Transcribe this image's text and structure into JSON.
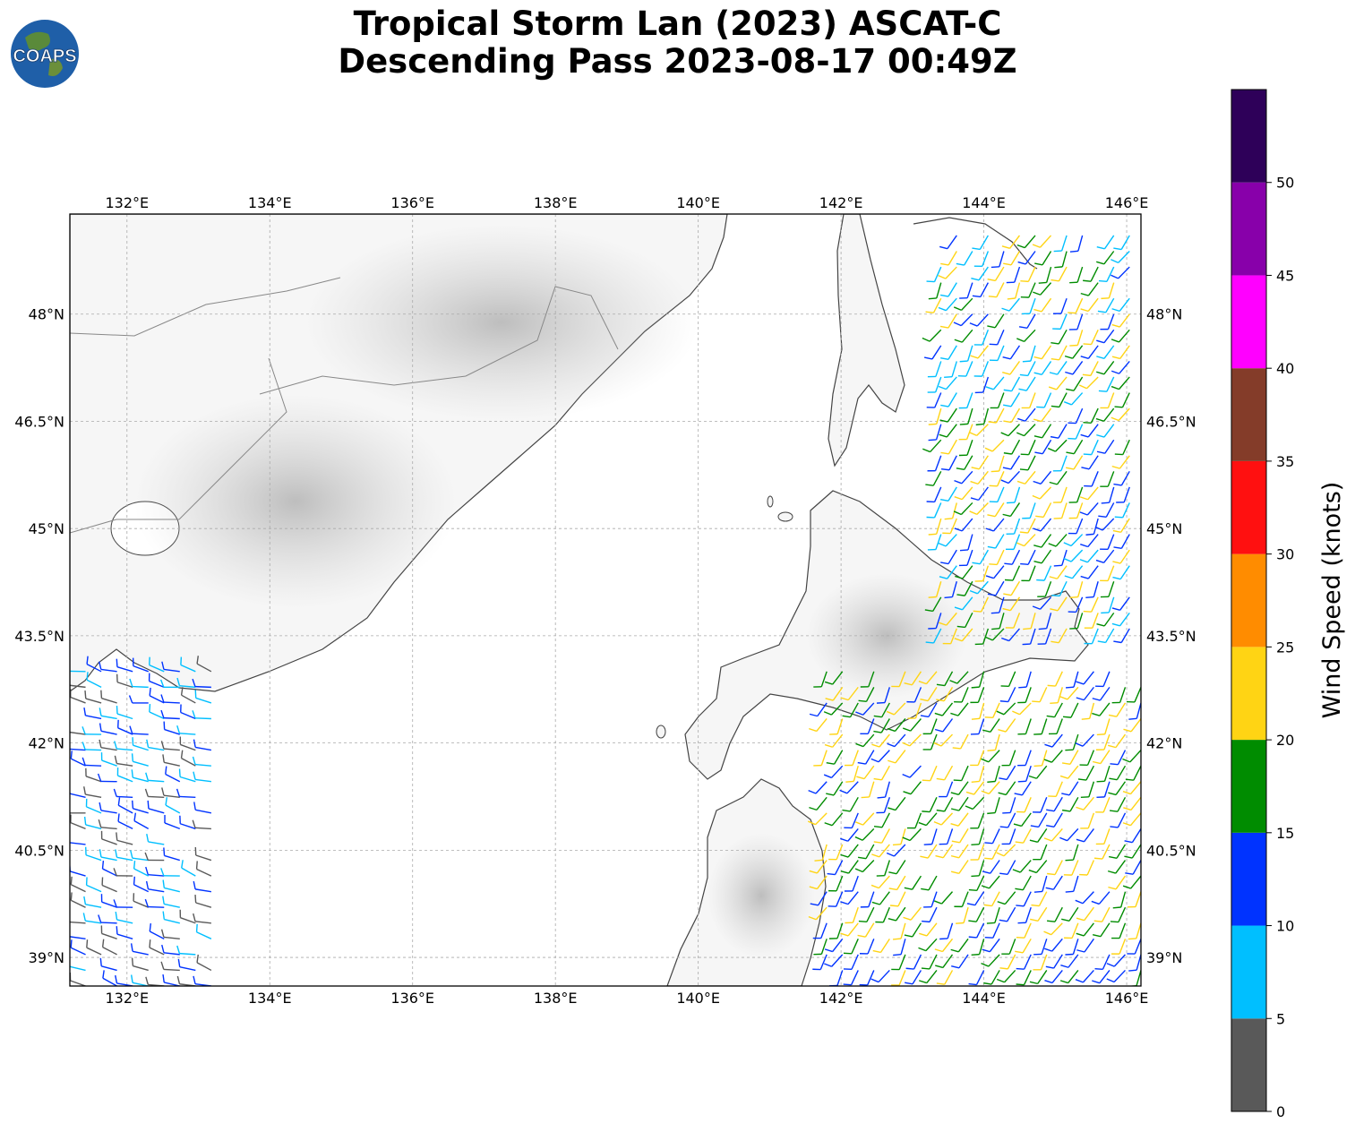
{
  "title": {
    "line1": "Tropical Storm Lan (2023) ASCAT-C",
    "line2": "Descending Pass 2023-08-17 00:49Z"
  },
  "logo": {
    "text": "COAPS",
    "icon": "globe-icon"
  },
  "map": {
    "lon_range": [
      131.2,
      146.2
    ],
    "lat_range": [
      38.6,
      49.4
    ],
    "lon_ticks": [
      "132°E",
      "134°E",
      "136°E",
      "138°E",
      "140°E",
      "142°E",
      "144°E",
      "146°E"
    ],
    "lon_tick_values": [
      132,
      134,
      136,
      138,
      140,
      142,
      144,
      146
    ],
    "lat_ticks": [
      "39°N",
      "40.5°N",
      "42°N",
      "43.5°N",
      "45°N",
      "46.5°N",
      "48°N"
    ],
    "lat_tick_values": [
      39,
      40.5,
      42,
      43.5,
      45,
      46.5,
      48
    ],
    "grid": true
  },
  "colorbar": {
    "label": "Wind Speed (knots)",
    "ticks": [
      "0",
      "5",
      "10",
      "15",
      "20",
      "25",
      "30",
      "35",
      "40",
      "45",
      "50"
    ],
    "bins": [
      {
        "min": 0,
        "max": 5,
        "color": "#595959"
      },
      {
        "min": 5,
        "max": 10,
        "color": "#00bfff"
      },
      {
        "min": 10,
        "max": 15,
        "color": "#0033ff"
      },
      {
        "min": 15,
        "max": 20,
        "color": "#008c00"
      },
      {
        "min": 20,
        "max": 25,
        "color": "#ffd414"
      },
      {
        "min": 25,
        "max": 30,
        "color": "#ff8c00"
      },
      {
        "min": 30,
        "max": 35,
        "color": "#ff1010"
      },
      {
        "min": 35,
        "max": 40,
        "color": "#843c29"
      },
      {
        "min": 40,
        "max": 45,
        "color": "#ff00ff"
      },
      {
        "min": 45,
        "max": 50,
        "color": "#8800aa"
      },
      {
        "min": 50,
        "max": 55,
        "color": "#2e0059"
      }
    ]
  },
  "wind_swaths": [
    {
      "name": "west-swath",
      "lon": [
        131.2,
        133.2
      ],
      "lat": [
        38.6,
        43.2
      ],
      "dir_deg": 285,
      "mix": [
        "#00bfff",
        "#0033ff",
        "#595959"
      ]
    },
    {
      "name": "east-swath-south",
      "lon": [
        141.8,
        146.2
      ],
      "lat": [
        38.6,
        43.2
      ],
      "dir_deg": 210,
      "mix": [
        "#008c00",
        "#0033ff",
        "#ffd414"
      ]
    },
    {
      "name": "east-swath-north",
      "lon": [
        143.4,
        146.2
      ],
      "lat": [
        43.6,
        49.3
      ],
      "dir_deg": 210,
      "mix": [
        "#008c00",
        "#0033ff",
        "#ffd414",
        "#00bfff"
      ]
    }
  ]
}
